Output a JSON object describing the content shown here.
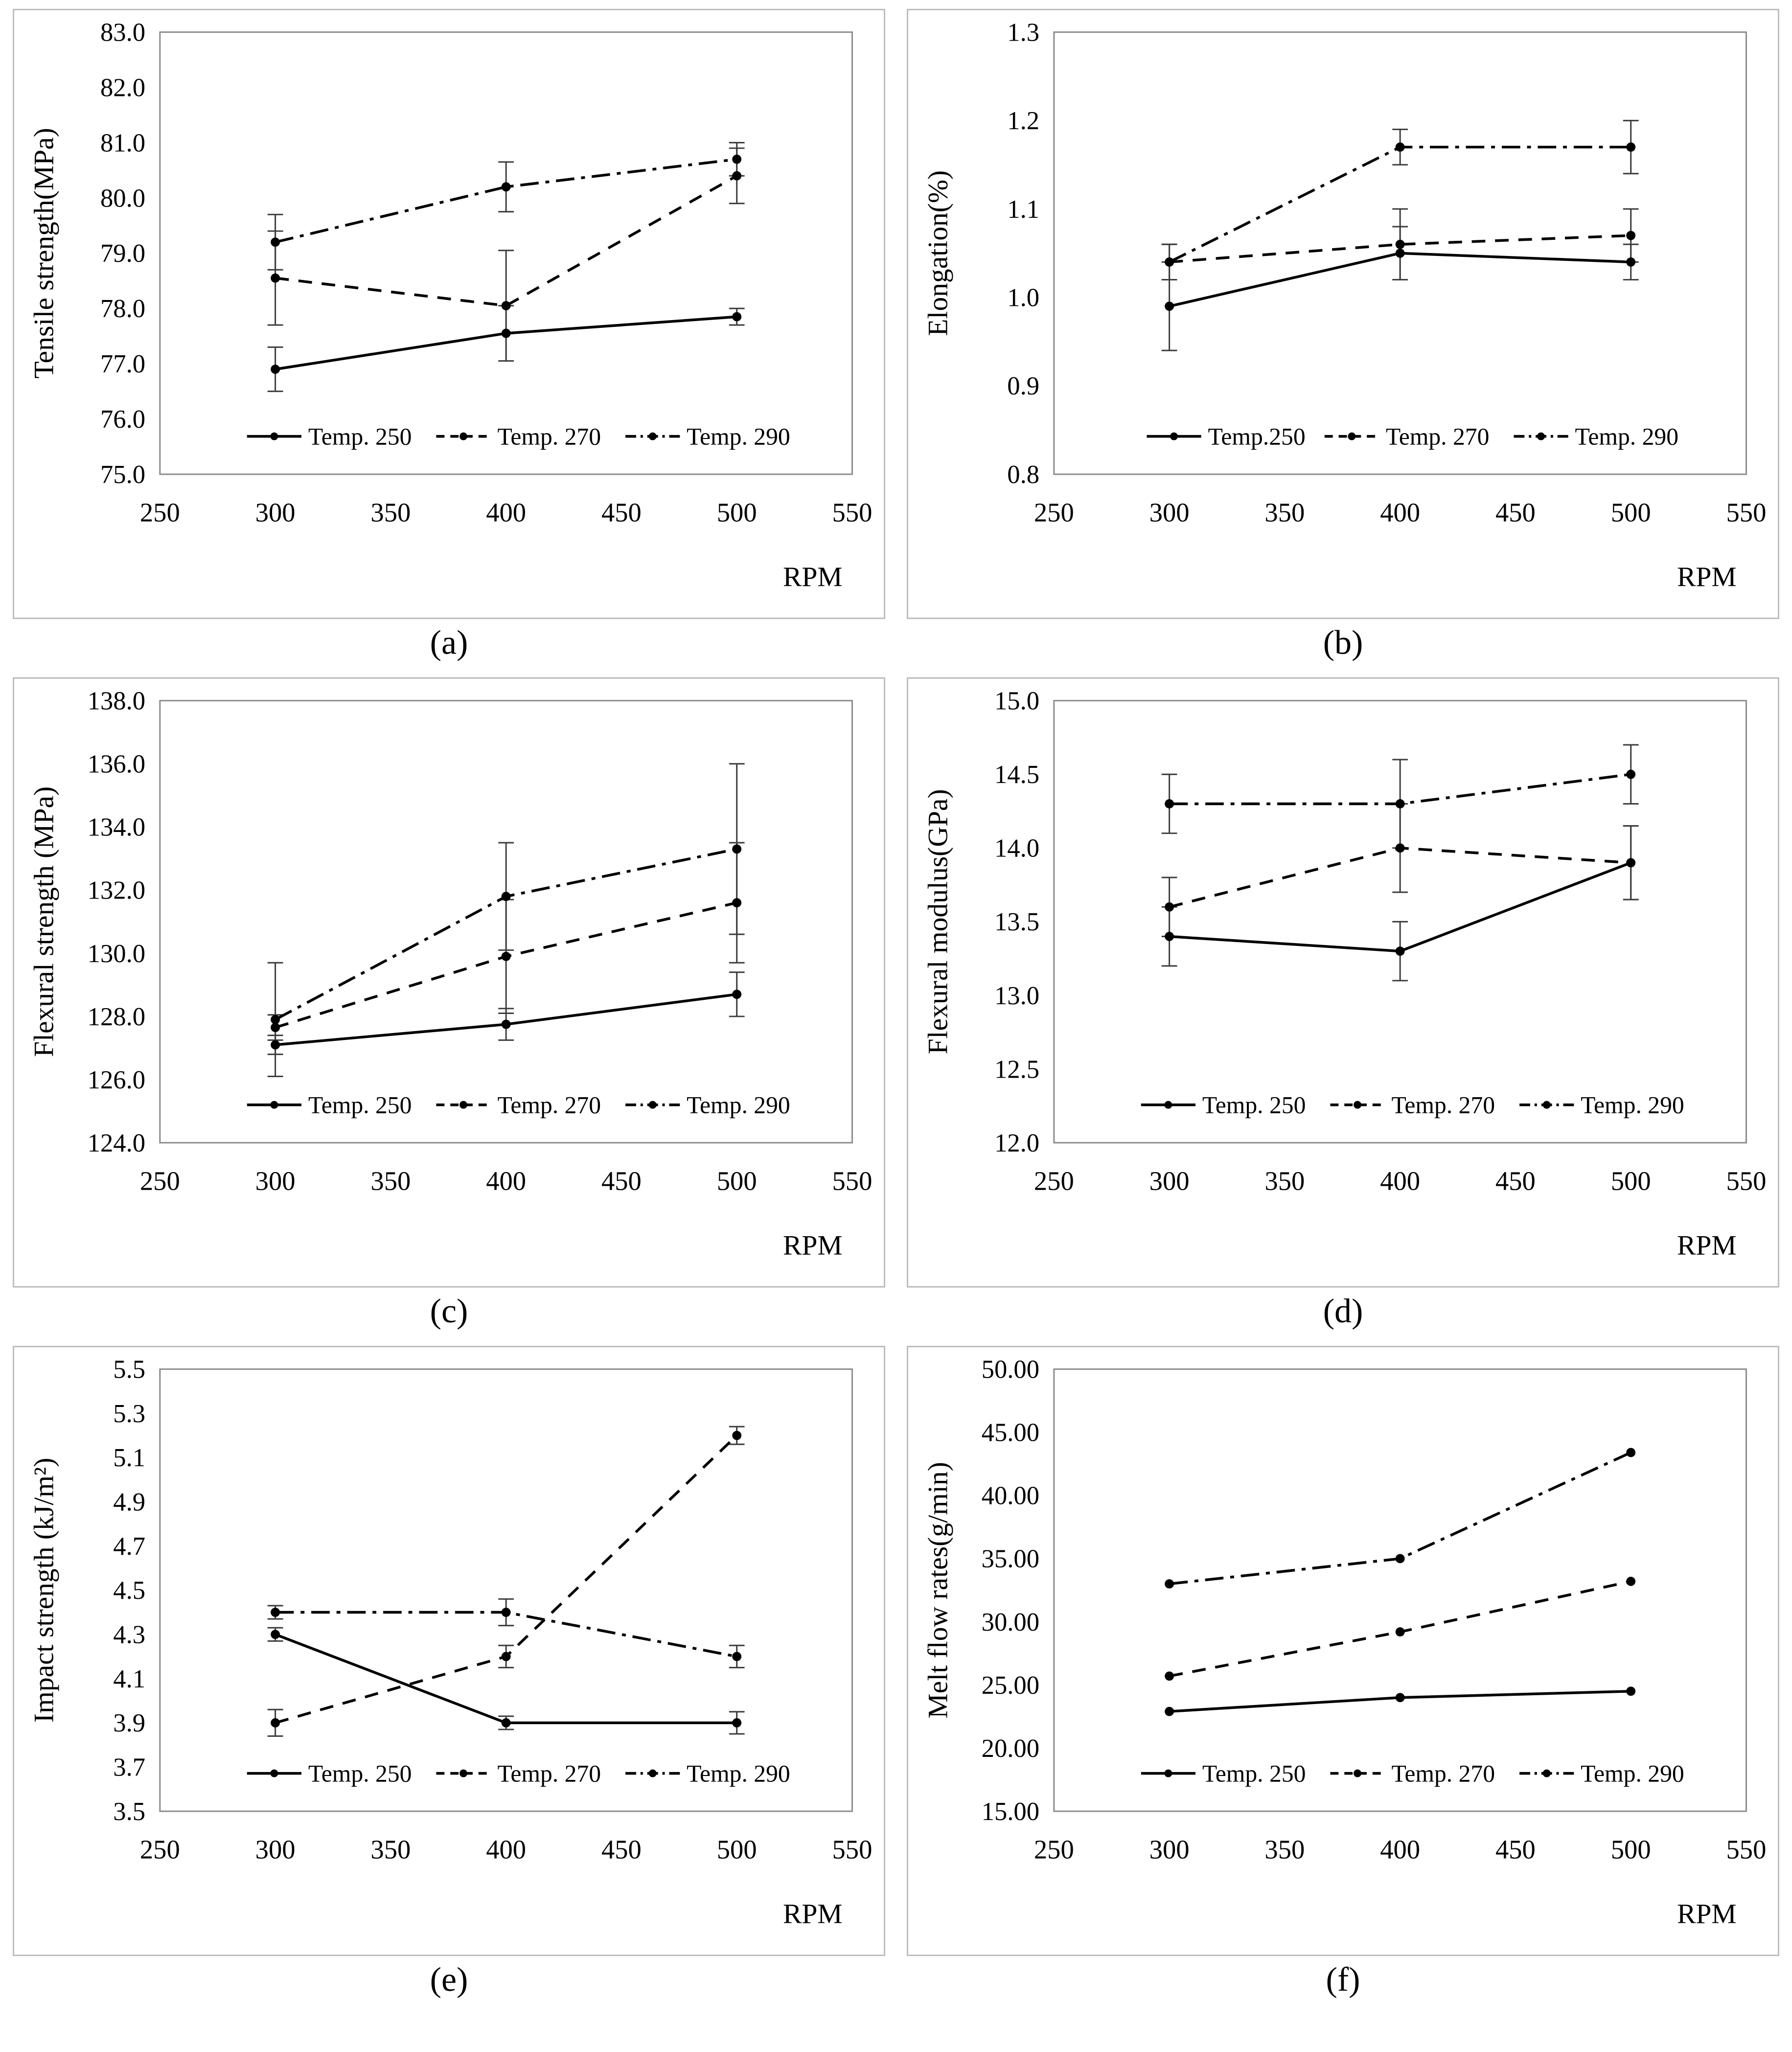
{
  "figure": {
    "xlabel": "RPM",
    "x_ticks": [
      250,
      300,
      350,
      400,
      450,
      500,
      550
    ],
    "x_values": [
      300,
      400,
      500
    ]
  },
  "chart_data": [
    {
      "type": "line",
      "caption": "(a)",
      "ylabel": "Tensile strength(MPa)",
      "xlabel": "RPM",
      "ylim": [
        75.0,
        83.0
      ],
      "ytick_step": 1.0,
      "ydecimals": 1,
      "x": [
        300,
        400,
        500
      ],
      "series": [
        {
          "name": "Temp. 250",
          "style": "solid",
          "values": [
            76.9,
            77.55,
            77.85
          ],
          "errors": [
            0.4,
            0.5,
            0.15
          ]
        },
        {
          "name": "Temp. 270",
          "style": "dashed",
          "values": [
            78.55,
            78.05,
            80.4
          ],
          "errors": [
            0.85,
            1.0,
            0.5
          ]
        },
        {
          "name": "Temp. 290",
          "style": "dashdot",
          "values": [
            79.2,
            80.2,
            80.7
          ],
          "errors": [
            0.5,
            0.45,
            0.3
          ]
        }
      ]
    },
    {
      "type": "line",
      "caption": "(b)",
      "ylabel": "Elongation(%)",
      "xlabel": "RPM",
      "ylim": [
        0.8,
        1.3
      ],
      "ytick_step": 0.1,
      "ydecimals": 1,
      "x": [
        300,
        400,
        500
      ],
      "series": [
        {
          "name": "Temp.250",
          "style": "solid",
          "values": [
            0.99,
            1.05,
            1.04
          ],
          "errors": [
            0.05,
            0.03,
            0.02
          ]
        },
        {
          "name": "Temp. 270",
          "style": "dashed",
          "values": [
            1.04,
            1.06,
            1.07
          ],
          "errors": [
            0.02,
            0.04,
            0.03
          ]
        },
        {
          "name": "Temp. 290",
          "style": "dashdot",
          "values": [
            1.04,
            1.17,
            1.17
          ],
          "errors": [
            0.02,
            0.02,
            0.03
          ]
        }
      ]
    },
    {
      "type": "line",
      "caption": "(c)",
      "ylabel": "Flexural strength (MPa)",
      "xlabel": "RPM",
      "ylim": [
        124.0,
        138.0
      ],
      "ytick_step": 2.0,
      "ydecimals": 1,
      "x": [
        300,
        400,
        500
      ],
      "series": [
        {
          "name": "Temp. 250",
          "style": "solid",
          "values": [
            127.1,
            127.75,
            128.7
          ],
          "errors": [
            0.3,
            0.5,
            0.7
          ]
        },
        {
          "name": "Temp. 270",
          "style": "dashed",
          "values": [
            127.65,
            129.9,
            131.6
          ],
          "errors": [
            0.4,
            1.8,
            1.9
          ]
        },
        {
          "name": "Temp. 290",
          "style": "dashdot",
          "values": [
            127.9,
            131.8,
            133.3
          ],
          "errors": [
            1.8,
            1.7,
            2.7
          ]
        }
      ]
    },
    {
      "type": "line",
      "caption": "(d)",
      "ylabel": "Flexural modulus(GPa)",
      "xlabel": "RPM",
      "ylim": [
        12.0,
        15.0
      ],
      "ytick_step": 0.5,
      "ydecimals": 1,
      "x": [
        300,
        400,
        500
      ],
      "series": [
        {
          "name": "Temp. 250",
          "style": "solid",
          "values": [
            13.4,
            13.3,
            13.9
          ],
          "errors": [
            0.2,
            0.2,
            0.25
          ]
        },
        {
          "name": "Temp. 270",
          "style": "dashed",
          "values": [
            13.6,
            14.0,
            13.9
          ],
          "errors": [
            0.2,
            0.3,
            0.25
          ]
        },
        {
          "name": "Temp. 290",
          "style": "dashdot",
          "values": [
            14.3,
            14.3,
            14.5
          ],
          "errors": [
            0.2,
            0.3,
            0.2
          ]
        }
      ]
    },
    {
      "type": "line",
      "caption": "(e)",
      "ylabel": "Impact strength (kJ/m²)",
      "xlabel": "RPM",
      "ylim": [
        3.5,
        5.5
      ],
      "ytick_step": 0.2,
      "ydecimals": 1,
      "x": [
        300,
        400,
        500
      ],
      "series": [
        {
          "name": "Temp. 250",
          "style": "solid",
          "values": [
            4.3,
            3.9,
            3.9
          ],
          "errors": [
            0.03,
            0.03,
            0.05
          ]
        },
        {
          "name": "Temp. 270",
          "style": "dashed",
          "values": [
            3.9,
            4.2,
            5.2
          ],
          "errors": [
            0.06,
            0.05,
            0.04
          ]
        },
        {
          "name": "Temp. 290",
          "style": "dashdot",
          "values": [
            4.4,
            4.4,
            4.2
          ],
          "errors": [
            0.03,
            0.06,
            0.05
          ]
        }
      ]
    },
    {
      "type": "line",
      "caption": "(f)",
      "ylabel": "Melt flow rates(g/min)",
      "xlabel": "RPM",
      "ylim": [
        15.0,
        50.0
      ],
      "ytick_step": 5.0,
      "ydecimals": 2,
      "x": [
        300,
        400,
        500
      ],
      "series": [
        {
          "name": "Temp. 250",
          "style": "solid",
          "values": [
            22.9,
            24.0,
            24.5
          ],
          "errors": [
            0,
            0,
            0
          ]
        },
        {
          "name": "Temp. 270",
          "style": "dashed",
          "values": [
            25.7,
            29.2,
            33.2
          ],
          "errors": [
            0,
            0,
            0
          ]
        },
        {
          "name": "Temp. 290",
          "style": "dashdot",
          "values": [
            33.0,
            35.0,
            43.4
          ],
          "errors": [
            0,
            0,
            0
          ]
        }
      ]
    }
  ]
}
